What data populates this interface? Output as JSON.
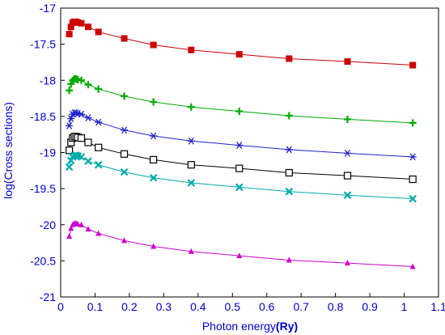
{
  "chart_data": {
    "type": "line",
    "xlabel_prefix": "Photon energy",
    "xlabel_unit": "(Ry)",
    "ylabel": "log(Cross sections)",
    "xlim": [
      0,
      1.1
    ],
    "ylim": [
      -21,
      -17
    ],
    "xticks": [
      0,
      0.1,
      0.2,
      0.3,
      0.4,
      0.5,
      0.6,
      0.7,
      0.8,
      0.9,
      1,
      1.1
    ],
    "xtick_labels": [
      "0",
      "0.1",
      "0.2",
      "0.3",
      "0.4",
      "0.5",
      "0.6",
      "0.7",
      "0.8",
      "0.9",
      "1",
      "1.1"
    ],
    "yticks": [
      -17,
      -17.5,
      -18,
      -18.5,
      -19,
      -19.5,
      -20,
      -20.5,
      -21
    ],
    "ytick_labels": [
      "-17",
      "-17.5",
      "-18",
      "-18.5",
      "-19",
      "-19.5",
      "-20",
      "-20.5",
      "-21"
    ],
    "grid": false,
    "legend": "none",
    "series": [
      {
        "color": "#cc0000",
        "marker": "filled-square",
        "x": [
          0.025,
          0.03,
          0.035,
          0.04,
          0.045,
          0.05,
          0.06,
          0.08,
          0.11,
          0.185,
          0.27,
          0.38,
          0.52,
          0.665,
          0.835,
          1.025
        ],
        "y": [
          -17.36,
          -17.26,
          -17.2,
          -17.19,
          -17.19,
          -17.2,
          -17.21,
          -17.26,
          -17.33,
          -17.42,
          -17.51,
          -17.58,
          -17.64,
          -17.7,
          -17.74,
          -17.79
        ]
      },
      {
        "color": "#00aa00",
        "marker": "plus",
        "x": [
          0.025,
          0.03,
          0.035,
          0.04,
          0.045,
          0.05,
          0.06,
          0.08,
          0.11,
          0.185,
          0.27,
          0.38,
          0.52,
          0.665,
          0.835,
          1.025
        ],
        "y": [
          -18.14,
          -18.05,
          -18.0,
          -17.98,
          -17.98,
          -17.99,
          -18.0,
          -18.06,
          -18.12,
          -18.22,
          -18.3,
          -18.37,
          -18.43,
          -18.49,
          -18.54,
          -18.59
        ]
      },
      {
        "color": "#2222cc",
        "marker": "asterisk",
        "x": [
          0.025,
          0.03,
          0.035,
          0.04,
          0.045,
          0.05,
          0.06,
          0.08,
          0.11,
          0.185,
          0.27,
          0.38,
          0.52,
          0.665,
          0.835,
          1.025
        ],
        "y": [
          -18.63,
          -18.53,
          -18.47,
          -18.45,
          -18.45,
          -18.46,
          -18.47,
          -18.52,
          -18.58,
          -18.69,
          -18.77,
          -18.84,
          -18.9,
          -18.96,
          -19.01,
          -19.06
        ]
      },
      {
        "color": "#000000",
        "marker": "open-square",
        "x": [
          0.025,
          0.03,
          0.035,
          0.04,
          0.045,
          0.05,
          0.06,
          0.08,
          0.11,
          0.185,
          0.27,
          0.38,
          0.52,
          0.665,
          0.835,
          1.025
        ],
        "y": [
          -18.97,
          -18.86,
          -18.8,
          -18.78,
          -18.78,
          -18.79,
          -18.8,
          -18.86,
          -18.93,
          -19.02,
          -19.1,
          -19.17,
          -19.22,
          -19.28,
          -19.32,
          -19.37
        ]
      },
      {
        "color": "#00aaaa",
        "marker": "x",
        "x": [
          0.025,
          0.03,
          0.035,
          0.04,
          0.045,
          0.05,
          0.06,
          0.08,
          0.11,
          0.185,
          0.27,
          0.38,
          0.52,
          0.665,
          0.835,
          1.025
        ],
        "y": [
          -19.2,
          -19.11,
          -19.06,
          -19.04,
          -19.04,
          -19.05,
          -19.06,
          -19.12,
          -19.17,
          -19.27,
          -19.35,
          -19.42,
          -19.48,
          -19.54,
          -19.59,
          -19.64
        ]
      },
      {
        "color": "#cc00cc",
        "marker": "triangle",
        "x": [
          0.025,
          0.03,
          0.035,
          0.04,
          0.045,
          0.05,
          0.06,
          0.08,
          0.11,
          0.185,
          0.27,
          0.38,
          0.52,
          0.665,
          0.835,
          1.025
        ],
        "y": [
          -20.16,
          -20.05,
          -20.0,
          -19.98,
          -19.98,
          -19.99,
          -20.0,
          -20.06,
          -20.12,
          -20.22,
          -20.3,
          -20.37,
          -20.43,
          -20.49,
          -20.53,
          -20.58
        ]
      }
    ]
  }
}
